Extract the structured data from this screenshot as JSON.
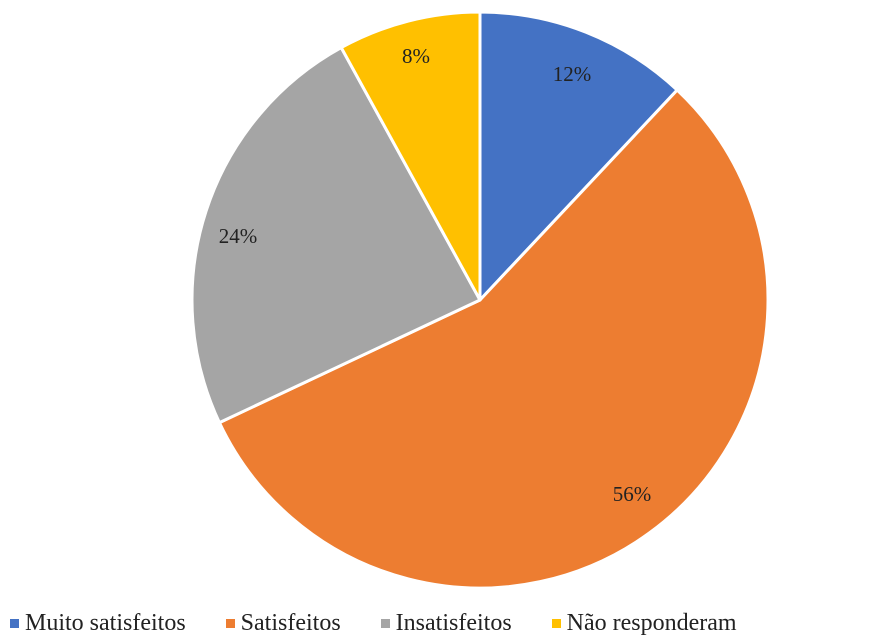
{
  "chart_data": {
    "type": "pie",
    "title": "",
    "categories": [
      "Muito satisfeitos",
      "Satisfeitos",
      "Insatisfeitos",
      "Não responderam"
    ],
    "values": [
      12,
      56,
      24,
      8
    ],
    "labels": [
      "12%",
      "56%",
      "24%",
      "8%"
    ],
    "colors": [
      "#4472C4",
      "#ED7D31",
      "#A5A5A5",
      "#FFC000"
    ],
    "start_angle": "12 o'clock",
    "direction": "clockwise",
    "legend": "bottom"
  }
}
